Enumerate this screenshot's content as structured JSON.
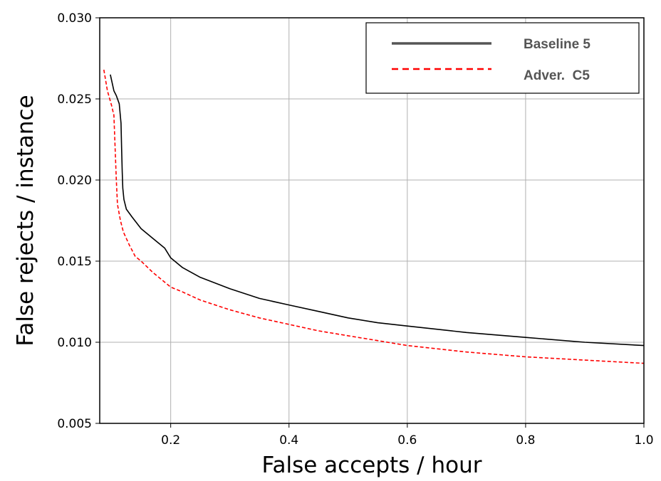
{
  "chart_data": {
    "type": "line",
    "title": "",
    "xlabel": "False accepts / hour",
    "ylabel": "False rejects / instance",
    "xlim": [
      0.08,
      1.0
    ],
    "ylim": [
      0.005,
      0.03
    ],
    "xticks": [
      "0.2",
      "0.4",
      "0.6",
      "0.8",
      "1.0"
    ],
    "xtick_values": [
      0.2,
      0.4,
      0.6,
      0.8,
      1.0
    ],
    "yticks": [
      "0.005",
      "0.010",
      "0.015",
      "0.020",
      "0.025",
      "0.030"
    ],
    "ytick_values": [
      0.005,
      0.01,
      0.015,
      0.02,
      0.025,
      0.03
    ],
    "grid": true,
    "legend_position": "top-right",
    "series": [
      {
        "name": "Baseline 5",
        "color": "#000000",
        "linestyle": "solid",
        "x": [
          0.098,
          0.104,
          0.108,
          0.113,
          0.116,
          0.117,
          0.118,
          0.119,
          0.121,
          0.125,
          0.135,
          0.15,
          0.17,
          0.19,
          0.2,
          0.22,
          0.25,
          0.3,
          0.35,
          0.4,
          0.45,
          0.5,
          0.55,
          0.6,
          0.7,
          0.8,
          0.9,
          1.0
        ],
        "y": [
          0.0265,
          0.0255,
          0.0252,
          0.0247,
          0.0235,
          0.022,
          0.0205,
          0.0195,
          0.0188,
          0.0182,
          0.0177,
          0.017,
          0.0164,
          0.0158,
          0.0152,
          0.0146,
          0.014,
          0.0133,
          0.0127,
          0.0123,
          0.0119,
          0.0115,
          0.0112,
          0.011,
          0.0106,
          0.0103,
          0.01,
          0.0098
        ]
      },
      {
        "name": "Adver.  C5",
        "color": "#ff0000",
        "linestyle": "dashed",
        "x": [
          0.087,
          0.093,
          0.1,
          0.104,
          0.106,
          0.108,
          0.11,
          0.115,
          0.12,
          0.13,
          0.14,
          0.15,
          0.17,
          0.19,
          0.2,
          0.22,
          0.25,
          0.3,
          0.35,
          0.4,
          0.45,
          0.5,
          0.55,
          0.6,
          0.7,
          0.8,
          0.9,
          1.0
        ],
        "y": [
          0.0268,
          0.0255,
          0.0246,
          0.024,
          0.022,
          0.02,
          0.0185,
          0.0175,
          0.0168,
          0.016,
          0.0153,
          0.015,
          0.0143,
          0.0137,
          0.0134,
          0.0131,
          0.0126,
          0.012,
          0.0115,
          0.0111,
          0.0107,
          0.0104,
          0.0101,
          0.0098,
          0.0094,
          0.0091,
          0.0089,
          0.0087
        ]
      }
    ]
  }
}
